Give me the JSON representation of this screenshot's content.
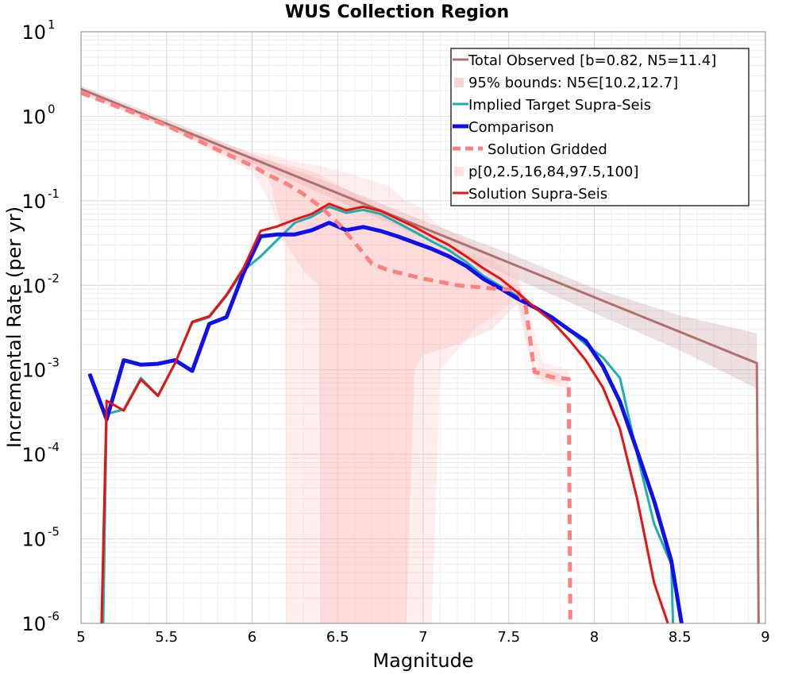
{
  "chart_data": {
    "type": "line",
    "title": "WUS Collection Region",
    "xlabel": "Magnitude",
    "ylabel": "Incremental Rate (per yr)",
    "xlim": [
      5,
      9
    ],
    "ylim": [
      1e-06,
      10
    ],
    "yscale": "log",
    "grid": true,
    "legend_position": "top-right",
    "xticks": [
      "5",
      "5.5",
      "6",
      "6.5",
      "7",
      "7.5",
      "8",
      "8.5",
      "9"
    ],
    "yticks": [
      {
        "base": "10",
        "exp": "1"
      },
      {
        "base": "10",
        "exp": "0"
      },
      {
        "base": "10",
        "exp": "-1"
      },
      {
        "base": "10",
        "exp": "-2"
      },
      {
        "base": "10",
        "exp": "-3"
      },
      {
        "base": "10",
        "exp": "-4"
      },
      {
        "base": "10",
        "exp": "-5"
      },
      {
        "base": "10",
        "exp": "-6"
      }
    ],
    "bands": [
      {
        "name": "95% bounds: N5∈[10.2,12.7]",
        "color": "#b98585",
        "opacity": 0.25,
        "x": [
          5.0,
          5.5,
          6.0,
          6.5,
          7.0,
          7.5,
          8.0,
          8.5,
          8.95
        ],
        "lower": [
          1.95,
          0.75,
          0.28,
          0.1,
          0.036,
          0.013,
          0.0047,
          0.0017,
          0.0006
        ],
        "upper": [
          2.3,
          0.92,
          0.36,
          0.15,
          0.058,
          0.024,
          0.0092,
          0.0044,
          0.0027
        ]
      },
      {
        "name": "p[0,2.5,16,84,97.5,100] outer",
        "color": "#ffb3b3",
        "opacity": 0.22,
        "x": [
          5.0,
          5.5,
          5.8,
          6.0,
          6.1,
          6.19,
          6.2,
          6.4,
          6.6,
          6.8,
          6.9,
          6.95,
          7.0,
          7.05,
          7.1,
          7.3,
          7.55,
          7.7,
          7.85
        ],
        "lower": [
          1.8,
          0.72,
          0.36,
          0.22,
          0.1,
          0.03,
          1e-06,
          1e-06,
          1e-06,
          1e-06,
          1e-06,
          1e-06,
          1e-06,
          1e-06,
          0.001,
          0.003,
          0.007,
          0.0007,
          0.0006
        ],
        "upper": [
          2.0,
          0.82,
          0.5,
          0.38,
          0.35,
          0.32,
          0.3,
          0.26,
          0.2,
          0.15,
          0.1,
          0.09,
          0.08,
          0.06,
          0.05,
          0.03,
          0.015,
          0.0012,
          0.001
        ]
      },
      {
        "name": "p[0,2.5,16,84,97.5,100] inner",
        "color": "#ffb3b3",
        "opacity": 0.3,
        "x": [
          5.0,
          5.5,
          5.8,
          6.0,
          6.1,
          6.2,
          6.3,
          6.39,
          6.4,
          6.6,
          6.9,
          6.95,
          7.0,
          7.2,
          7.4,
          7.55,
          7.65,
          7.8
        ],
        "lower": [
          1.85,
          0.75,
          0.38,
          0.25,
          0.18,
          0.03,
          0.015,
          0.01,
          1e-06,
          1e-06,
          1e-06,
          0.001,
          0.0015,
          0.002,
          0.003,
          0.006,
          0.0008,
          0.0007
        ],
        "upper": [
          1.95,
          0.8,
          0.44,
          0.33,
          0.3,
          0.27,
          0.24,
          0.21,
          0.2,
          0.12,
          0.05,
          0.04,
          0.035,
          0.025,
          0.02,
          0.012,
          0.0011,
          0.0009
        ]
      }
    ],
    "series": [
      {
        "name": "Total Observed [b=0.82, N5=11.4]",
        "color": "#b07070",
        "width": 3,
        "dash": "",
        "x": [
          5.0,
          8.95,
          8.96
        ],
        "y": [
          2.1,
          0.0012,
          1e-06
        ]
      },
      {
        "name": "Implied Target Supra-Seis",
        "color": "#1ab0b0",
        "width": 3,
        "dash": "",
        "x": [
          5.13,
          5.15,
          5.25,
          5.35,
          5.45,
          5.55,
          5.65,
          5.75,
          5.85,
          5.95,
          6.05,
          6.15,
          6.25,
          6.35,
          6.45,
          6.55,
          6.65,
          6.75,
          6.85,
          6.95,
          7.05,
          7.15,
          7.25,
          7.35,
          7.45,
          7.55,
          7.65,
          7.75,
          7.85,
          7.95,
          8.05,
          8.15,
          8.25,
          8.35,
          8.45,
          8.46
        ],
        "y": [
          1e-06,
          0.0003,
          0.00034,
          0.0008,
          0.0005,
          0.0012,
          0.0036,
          0.0042,
          0.0075,
          0.015,
          0.022,
          0.035,
          0.055,
          0.065,
          0.085,
          0.072,
          0.078,
          0.07,
          0.055,
          0.043,
          0.033,
          0.026,
          0.019,
          0.013,
          0.0098,
          0.0075,
          0.0055,
          0.0042,
          0.003,
          0.002,
          0.0014,
          0.0008,
          0.0001,
          1.5e-05,
          5e-06,
          1e-06
        ]
      },
      {
        "name": "Comparison",
        "color": "#1010ee",
        "width": 5,
        "dash": "",
        "x": [
          5.05,
          5.15,
          5.25,
          5.35,
          5.45,
          5.55,
          5.65,
          5.75,
          5.85,
          5.95,
          6.05,
          6.15,
          6.25,
          6.35,
          6.45,
          6.55,
          6.65,
          6.75,
          6.85,
          6.95,
          7.05,
          7.15,
          7.25,
          7.35,
          7.45,
          7.55,
          7.65,
          7.75,
          7.85,
          7.95,
          8.05,
          8.15,
          8.25,
          8.35,
          8.45,
          8.51
        ],
        "y": [
          0.0009,
          0.00026,
          0.0013,
          0.00115,
          0.00118,
          0.0013,
          0.00097,
          0.0035,
          0.0042,
          0.014,
          0.038,
          0.04,
          0.04,
          0.045,
          0.055,
          0.045,
          0.049,
          0.044,
          0.038,
          0.032,
          0.027,
          0.022,
          0.017,
          0.012,
          0.0092,
          0.007,
          0.0055,
          0.0042,
          0.003,
          0.0022,
          0.0011,
          0.00042,
          0.00011,
          2.8e-05,
          5.5e-06,
          1e-06
        ]
      },
      {
        "name": "Solution Gridded",
        "color": "#ff8080",
        "width": 5,
        "dash": "12,8",
        "x": [
          5.0,
          5.5,
          5.8,
          6.0,
          6.1,
          6.2,
          6.3,
          6.4,
          6.5,
          6.6,
          6.7,
          6.8,
          7.0,
          7.2,
          7.4,
          7.55,
          7.6,
          7.65,
          7.75,
          7.85,
          7.86
        ],
        "y": [
          1.9,
          0.78,
          0.4,
          0.26,
          0.2,
          0.16,
          0.12,
          0.085,
          0.055,
          0.032,
          0.018,
          0.015,
          0.012,
          0.01,
          0.0092,
          0.0088,
          0.0055,
          0.00095,
          0.00082,
          0.00078,
          1e-06
        ]
      },
      {
        "name": "Solution Supra-Seis",
        "color": "#ee1010",
        "width": 3,
        "dash": "",
        "x": [
          5.12,
          5.15,
          5.25,
          5.35,
          5.45,
          5.55,
          5.65,
          5.75,
          5.85,
          5.95,
          6.05,
          6.15,
          6.25,
          6.35,
          6.45,
          6.55,
          6.65,
          6.75,
          6.85,
          6.95,
          7.05,
          7.15,
          7.25,
          7.35,
          7.45,
          7.55,
          7.65,
          7.75,
          7.85,
          7.95,
          8.05,
          8.15,
          8.25,
          8.35,
          8.43
        ],
        "y": [
          1e-06,
          0.00043,
          0.00033,
          0.00077,
          0.00049,
          0.0012,
          0.0037,
          0.0043,
          0.0077,
          0.016,
          0.044,
          0.05,
          0.06,
          0.07,
          0.092,
          0.077,
          0.085,
          0.076,
          0.061,
          0.049,
          0.038,
          0.03,
          0.022,
          0.016,
          0.012,
          0.0083,
          0.0055,
          0.0038,
          0.0023,
          0.0013,
          0.00062,
          0.0002,
          3e-05,
          3e-06,
          1e-06
        ]
      }
    ],
    "legend": [
      {
        "label": "Total Observed [b=0.82, N5=11.4]",
        "kind": "line",
        "color": "#b07070",
        "width": 3,
        "dash": ""
      },
      {
        "label": "95% bounds: N5∈[10.2,12.7]",
        "kind": "patch",
        "color": "#f0d8d8"
      },
      {
        "label": "Implied Target Supra-Seis",
        "kind": "line",
        "color": "#1ab0b0",
        "width": 3,
        "dash": ""
      },
      {
        "label": "Comparison",
        "kind": "line",
        "color": "#1010ee",
        "width": 5,
        "dash": ""
      },
      {
        "label": "Solution Gridded",
        "kind": "line",
        "color": "#ff8080",
        "width": 5,
        "dash": "12,8"
      },
      {
        "label": "p[0,2.5,16,84,97.5,100]",
        "kind": "patch",
        "color": "#ffe0e0"
      },
      {
        "label": "Solution Supra-Seis",
        "kind": "line",
        "color": "#ee1010",
        "width": 3,
        "dash": ""
      }
    ]
  }
}
